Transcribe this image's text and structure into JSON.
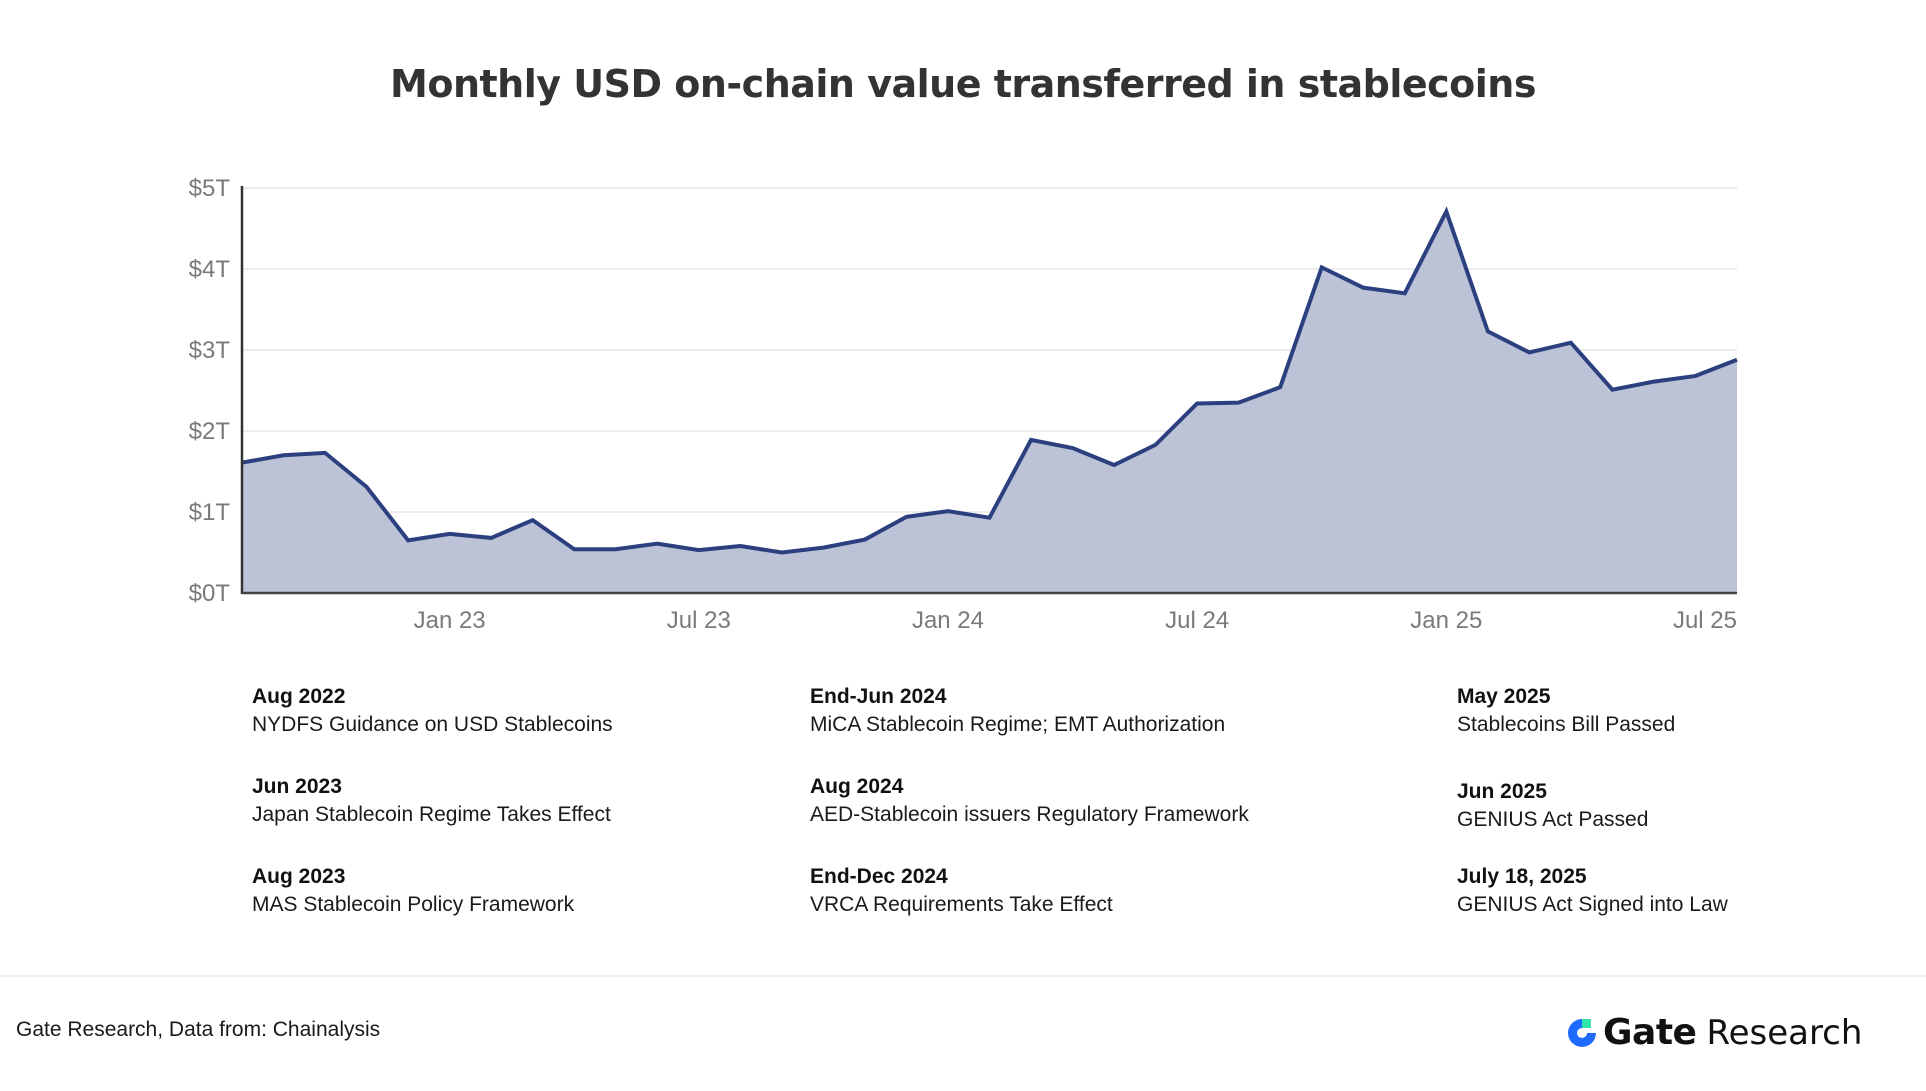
{
  "chart_data": {
    "type": "area",
    "title": "Monthly USD on-chain value transferred in stablecoins",
    "xlabel": "",
    "ylabel": "",
    "ylim": [
      0,
      5
    ],
    "grid": true,
    "y_unit": "Trillion USD",
    "yticks": [
      {
        "value": 0,
        "label": "$0T"
      },
      {
        "value": 1,
        "label": "$1T"
      },
      {
        "value": 2,
        "label": "$2T"
      },
      {
        "value": 3,
        "label": "$3T"
      },
      {
        "value": 4,
        "label": "$4T"
      },
      {
        "value": 5,
        "label": "$5T"
      }
    ],
    "xticks": [
      {
        "index": 5,
        "label": "Jan 23"
      },
      {
        "index": 11,
        "label": "Jul 23"
      },
      {
        "index": 17,
        "label": "Jan 24"
      },
      {
        "index": 23,
        "label": "Jul 24"
      },
      {
        "index": 29,
        "label": "Jan 25"
      },
      {
        "index": 35,
        "label": "Jul 25"
      }
    ],
    "x": [
      "Aug 2022",
      "Sep 2022",
      "Oct 2022",
      "Nov 2022",
      "Dec 2022",
      "Jan 2023",
      "Feb 2023",
      "Mar 2023",
      "Apr 2023",
      "May 2023",
      "Jun 2023",
      "Jul 2023",
      "Aug 2023",
      "Sep 2023",
      "Oct 2023",
      "Nov 2023",
      "Dec 2023",
      "Jan 2024",
      "Feb 2024",
      "Mar 2024",
      "Apr 2024",
      "May 2024",
      "Jun 2024",
      "Jul 2024",
      "Aug 2024",
      "Sep 2024",
      "Oct 2024",
      "Nov 2024",
      "Dec 2024",
      "Jan 2025",
      "Feb 2025",
      "Mar 2025",
      "Apr 2025",
      "May 2025",
      "Jun 2025",
      "Jul 2025",
      "Aug 2025"
    ],
    "series": [
      {
        "name": "Monthly USD on-chain value transferred",
        "color": "#2c4080",
        "fill": "#bcc3d7",
        "values": [
          1.61,
          1.7,
          1.73,
          1.31,
          0.65,
          0.73,
          0.68,
          0.9,
          0.54,
          0.54,
          0.61,
          0.53,
          0.58,
          0.5,
          0.56,
          0.66,
          0.94,
          1.01,
          0.93,
          1.89,
          1.79,
          1.58,
          1.83,
          2.34,
          2.35,
          2.54,
          4.02,
          3.77,
          3.7,
          4.71,
          3.23,
          2.97,
          3.09,
          2.51,
          2.61,
          2.68,
          2.88
        ]
      }
    ]
  },
  "events": {
    "columns": [
      [
        {
          "date": "Aug 2022",
          "desc": "NYDFS Guidance on USD Stablecoins"
        },
        {
          "date": "Jun 2023",
          "desc": "Japan Stablecoin Regime Takes Effect"
        },
        {
          "date": "Aug 2023",
          "desc": "MAS Stablecoin Policy Framework"
        }
      ],
      [
        {
          "date": "End-Jun 2024",
          "desc": "MiCA Stablecoin Regime; EMT Authorization"
        },
        {
          "date": "Aug 2024",
          "desc": "AED-Stablecoin issuers Regulatory Framework"
        },
        {
          "date": "End-Dec 2024",
          "desc": "VRCA Requirements Take Effect"
        }
      ],
      [
        {
          "date": "May 2025",
          "desc": "Stablecoins Bill Passed"
        },
        {
          "date": "Jun 2025",
          "desc": "GENIUS Act Passed"
        },
        {
          "date": "July 18, 2025",
          "desc": "GENIUS Act Signed into Law"
        }
      ]
    ]
  },
  "footer": {
    "source": "Gate Research, Data from:  Chainalysis",
    "logo_brand": "Gate",
    "logo_sub": "Research",
    "logo_icon": "gate-logo-icon",
    "logo_colors": {
      "blue": "#1f6bff",
      "green": "#2ee6a8"
    }
  }
}
